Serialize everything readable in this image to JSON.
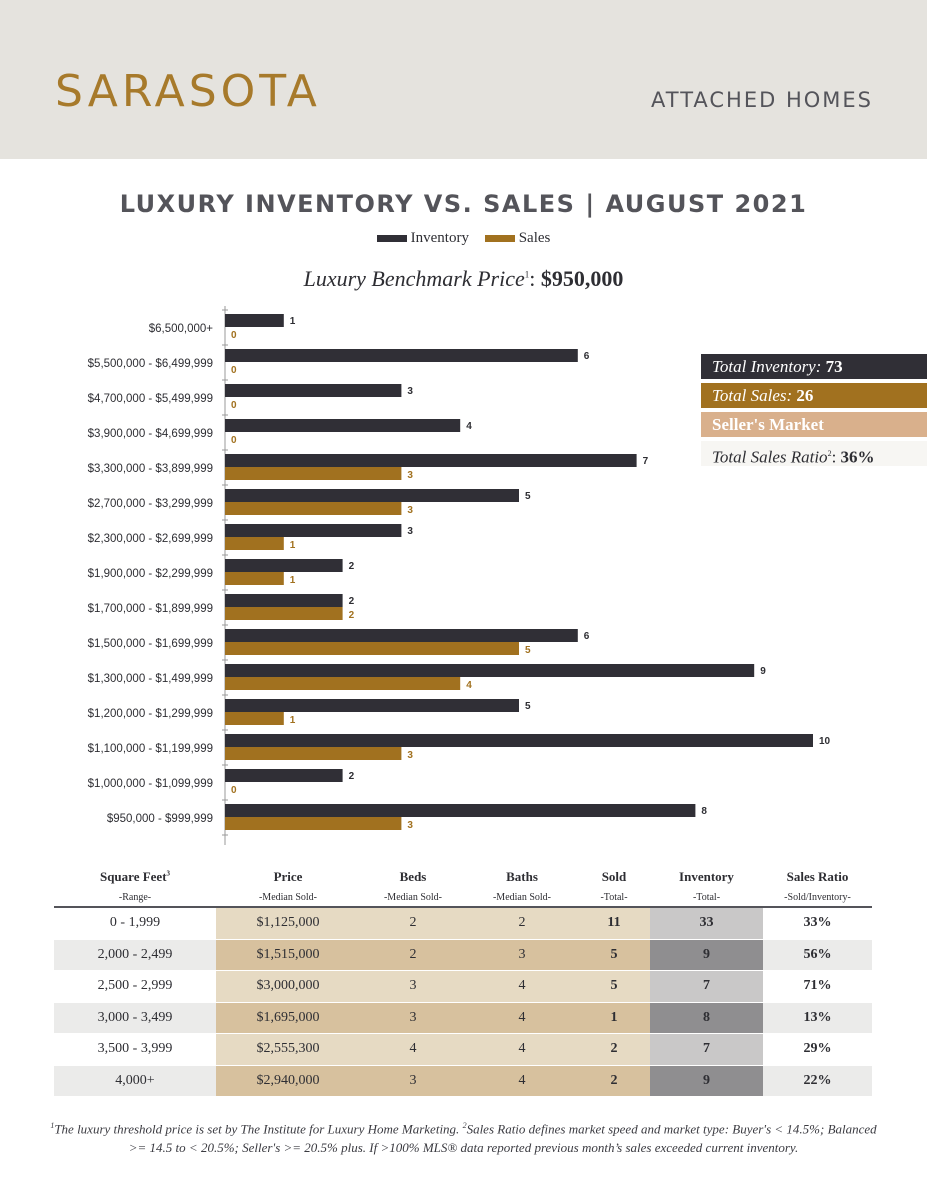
{
  "header": {
    "brand": "SARASOTA",
    "subtitle": "ATTACHED HOMES"
  },
  "colors": {
    "inventory": "#302f36",
    "sales": "#a1711f",
    "header_bg": "#e5e3de",
    "brand": "#a77a2b",
    "sellers_market_bg": "#d9b08c"
  },
  "benchmark": {
    "label": "Luxury Benchmark Price",
    "sup": "1",
    "value": "$950,000"
  },
  "summary": {
    "inventory_label": "Total Inventory:",
    "inventory_value": "73",
    "sales_label": "Total Sales:",
    "sales_value": "26",
    "market": "Seller's Market",
    "ratio_label": "Total Sales Ratio",
    "ratio_sup": "2",
    "ratio_value": "36%"
  },
  "chart_data": {
    "type": "bar",
    "orientation": "horizontal",
    "title": "LUXURY INVENTORY VS. SALES | AUGUST 2021",
    "legend": [
      "Inventory",
      "Sales"
    ],
    "categories": [
      "$6,500,000+",
      "$5,500,000 - $6,499,999",
      "$4,700,000 - $5,499,999",
      "$3,900,000 - $4,699,999",
      "$3,300,000 - $3,899,999",
      "$2,700,000 - $3,299,999",
      "$2,300,000 - $2,699,999",
      "$1,900,000 - $2,299,999",
      "$1,700,000 - $1,899,999",
      "$1,500,000 - $1,699,999",
      "$1,300,000 - $1,499,999",
      "$1,200,000 - $1,299,999",
      "$1,100,000 - $1,199,999",
      "$1,000,000 - $1,099,999",
      "$950,000 - $999,999"
    ],
    "series": [
      {
        "name": "Inventory",
        "values": [
          1,
          6,
          3,
          4,
          7,
          5,
          3,
          2,
          2,
          6,
          9,
          5,
          10,
          2,
          8
        ]
      },
      {
        "name": "Sales",
        "values": [
          0,
          0,
          0,
          0,
          3,
          3,
          1,
          1,
          2,
          5,
          4,
          1,
          3,
          0,
          3
        ]
      }
    ],
    "xlim": [
      0,
      10
    ],
    "grid": false,
    "legend_position": "top"
  },
  "table": {
    "headers": [
      {
        "label": "Square Feet",
        "sup": "3",
        "sub": "-Range-"
      },
      {
        "label": "Price",
        "sup": "",
        "sub": "-Median Sold-"
      },
      {
        "label": "Beds",
        "sup": "",
        "sub": "-Median Sold-"
      },
      {
        "label": "Baths",
        "sup": "",
        "sub": "-Median Sold-"
      },
      {
        "label": "Sold",
        "sup": "",
        "sub": "-Total-"
      },
      {
        "label": "Inventory",
        "sup": "",
        "sub": "-Total-"
      },
      {
        "label": "Sales Ratio",
        "sup": "",
        "sub": "-Sold/Inventory-"
      }
    ],
    "rows": [
      [
        "0 - 1,999",
        "$1,125,000",
        "2",
        "2",
        "11",
        "33",
        "33%"
      ],
      [
        "2,000 - 2,499",
        "$1,515,000",
        "2",
        "3",
        "5",
        "9",
        "56%"
      ],
      [
        "2,500 - 2,999",
        "$3,000,000",
        "3",
        "4",
        "5",
        "7",
        "71%"
      ],
      [
        "3,000 - 3,499",
        "$1,695,000",
        "3",
        "4",
        "1",
        "8",
        "13%"
      ],
      [
        "3,500 - 3,999",
        "$2,555,300",
        "4",
        "4",
        "2",
        "7",
        "29%"
      ],
      [
        "4,000+",
        "$2,940,000",
        "3",
        "4",
        "2",
        "9",
        "22%"
      ]
    ]
  },
  "footnote": {
    "sup1": "1",
    "text1": "The luxury threshold price is set by The Institute for Luxury Home Marketing.",
    "sup2": "2",
    "text2": "Sales Ratio defines market speed and market type: Buyer's < 14.5%; Balanced >= 14.5 to < 20.5%; Seller's >= 20.5% plus. If >100% MLS® data reported previous month’s sales exceeded current inventory."
  }
}
